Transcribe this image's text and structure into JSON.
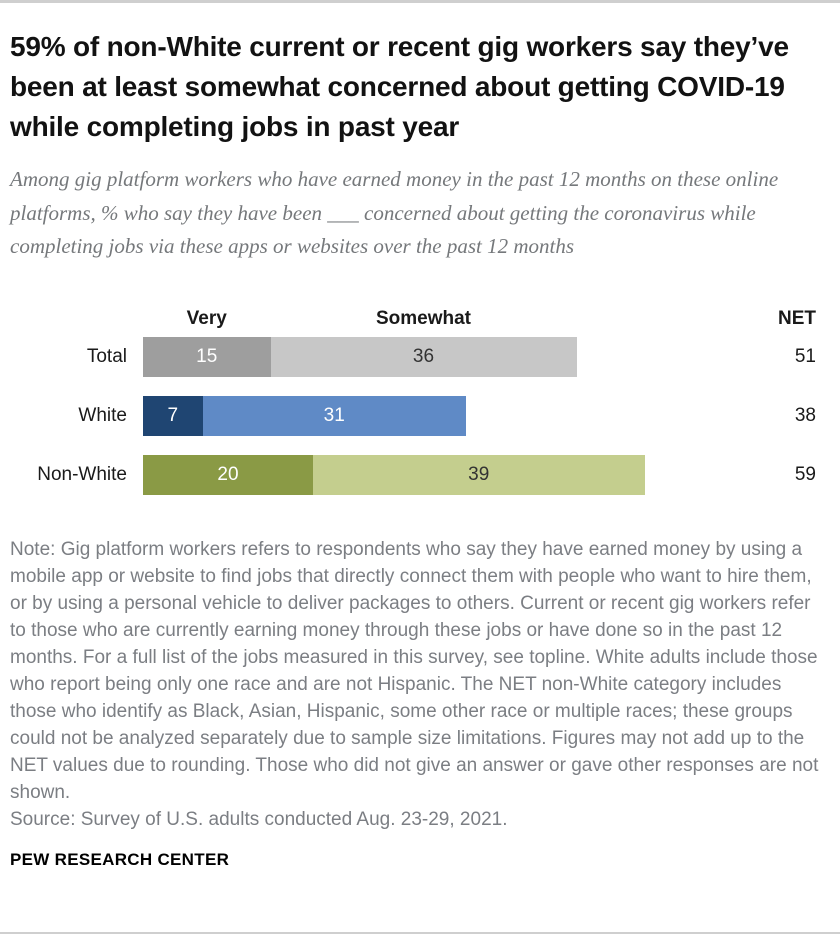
{
  "page": {
    "title": "59% of non-White current or recent gig workers say they’ve been at least somewhat concerned about getting COVID-19 while completing jobs in past year",
    "subtitle": "Among gig platform workers who have earned money in the past 12 months on these online platforms, % who say they have been ___ concerned about getting the coronavirus while completing jobs via these apps or websites over the past 12 months",
    "note": "Note: Gig platform workers refers to respondents who say they have earned money by using a mobile app or website to find jobs that directly connect them with people who want to hire them, or by using a personal vehicle to deliver packages to others. Current or recent gig workers refer to those who are currently earning money through these jobs or have done so in the past 12 months. For a full list of the jobs measured in this survey, see topline. White adults include those who report being only one race and are not Hispanic. The NET non-White category includes those who identify as Black, Asian, Hispanic, some other race or multiple races; these groups could not be analyzed separately due to sample size limitations. Figures may not add up to the NET values due to rounding. Those who did not give an answer or gave other responses are not shown.",
    "source": "Source: Survey of U.S. adults conducted Aug. 23-29, 2021.",
    "footer": "PEW RESEARCH CENTER"
  },
  "chart_data": {
    "type": "bar",
    "orientation": "horizontal",
    "stacked": true,
    "series_labels": [
      "Very",
      "Somewhat"
    ],
    "net_label": "NET",
    "categories": [
      "Total",
      "White",
      "Non-White"
    ],
    "rows": [
      {
        "label": "Total",
        "values": [
          15,
          36
        ],
        "net": 51,
        "colors": [
          "#9e9e9e",
          "#c7c7c7"
        ],
        "value_colors": [
          "#ffffff",
          "#333333"
        ]
      },
      {
        "label": "White",
        "values": [
          7,
          31
        ],
        "net": 38,
        "colors": [
          "#1f4572",
          "#5f8ac6"
        ],
        "value_colors": [
          "#ffffff",
          "#ffffff"
        ]
      },
      {
        "label": "Non-White",
        "values": [
          20,
          39
        ],
        "net": 59,
        "colors": [
          "#8a9a45",
          "#c4ce8e"
        ],
        "value_colors": [
          "#ffffff",
          "#333333"
        ]
      }
    ],
    "xlim": [
      0,
      59
    ],
    "legend_position": "column-headers-above-first-row",
    "grid": false
  }
}
